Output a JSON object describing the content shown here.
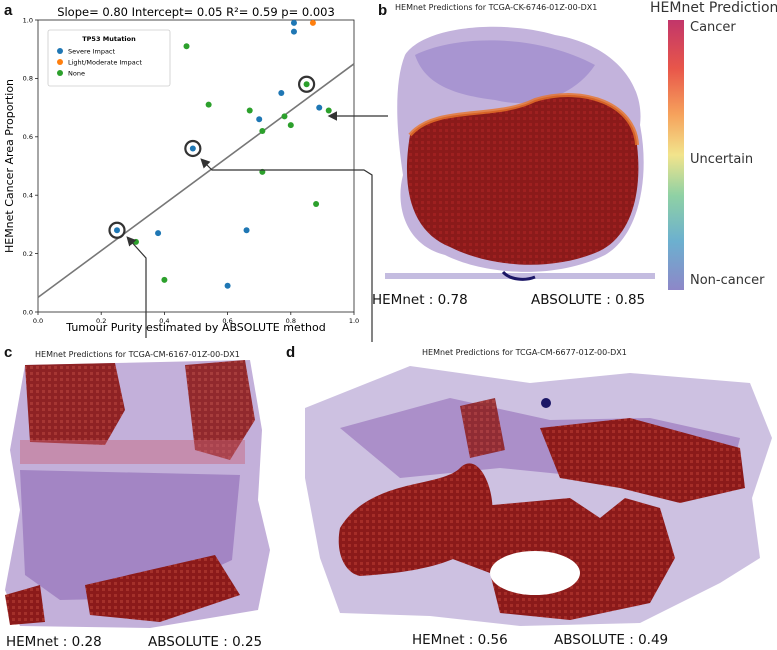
{
  "panels": {
    "a": {
      "letter": "a"
    },
    "b": {
      "letter": "b",
      "title": "HEMnet Predictions for TCGA-CK-6746-01Z-00-DX1",
      "hemnet": "HEMnet : 0.78",
      "absolute": "ABSOLUTE : 0.85"
    },
    "c": {
      "letter": "c",
      "title": "HEMnet Predictions for TCGA-CM-6167-01Z-00-DX1",
      "hemnet": "HEMnet : 0.28",
      "absolute": "ABSOLUTE : 0.25"
    },
    "d": {
      "letter": "d",
      "title": "HEMnet Predictions for TCGA-CM-6677-01Z-00-DX1",
      "hemnet": "HEMnet : 0.56",
      "absolute": "ABSOLUTE : 0.49"
    }
  },
  "colorbar": {
    "title": "HEMnet Prediction",
    "top_label": "Cancer",
    "mid_label": "Uncertain",
    "bottom_label": "Non-cancer"
  },
  "chart_data": {
    "type": "scatter",
    "title": "Slope= 0.80 Intercept= 0.05 R²= 0.59 p= 0.003",
    "xlabel": "Tumour Purity estimated by ABSOLUTE method",
    "ylabel": "HEMnet Cancer Area Proportion",
    "xlim": [
      0.0,
      1.0
    ],
    "ylim": [
      0.0,
      1.0
    ],
    "xticks": [
      "0.0",
      "0.2",
      "0.4",
      "0.6",
      "0.8",
      "1.0"
    ],
    "yticks": [
      "0.0",
      "0.2",
      "0.4",
      "0.6",
      "0.8",
      "1.0"
    ],
    "grid": false,
    "legend": {
      "title": "TP53 Mutation",
      "placement": "top-left"
    },
    "regression": {
      "slope": 0.8,
      "intercept": 0.05
    },
    "series": [
      {
        "name": "Severe Impact",
        "color": "#1f77b4",
        "points": [
          [
            0.25,
            0.28
          ],
          [
            0.38,
            0.27
          ],
          [
            0.49,
            0.56
          ],
          [
            0.6,
            0.09
          ],
          [
            0.66,
            0.28
          ],
          [
            0.7,
            0.66
          ],
          [
            0.77,
            0.75
          ],
          [
            0.81,
            0.96
          ],
          [
            0.81,
            0.99
          ],
          [
            0.89,
            0.7
          ]
        ]
      },
      {
        "name": "Light/Moderate Impact",
        "color": "#ff7f0e",
        "points": [
          [
            0.87,
            0.99
          ]
        ]
      },
      {
        "name": "None",
        "color": "#2ca02c",
        "points": [
          [
            0.31,
            0.24
          ],
          [
            0.4,
            0.11
          ],
          [
            0.47,
            0.91
          ],
          [
            0.54,
            0.71
          ],
          [
            0.67,
            0.69
          ],
          [
            0.71,
            0.62
          ],
          [
            0.71,
            0.48
          ],
          [
            0.78,
            0.67
          ],
          [
            0.8,
            0.64
          ],
          [
            0.85,
            0.78
          ],
          [
            0.88,
            0.37
          ],
          [
            0.92,
            0.69
          ]
        ]
      }
    ],
    "highlighted": [
      [
        0.25,
        0.28
      ],
      [
        0.49,
        0.56
      ],
      [
        0.85,
        0.78
      ]
    ]
  }
}
